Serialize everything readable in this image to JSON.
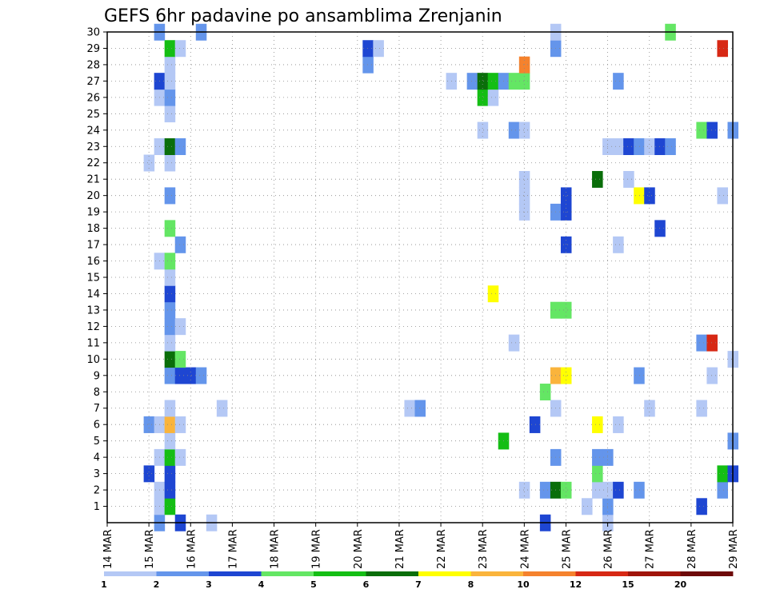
{
  "chart_data": {
    "type": "heatmap",
    "title": "GEFS 6hr padavine po ansamblima Zrenjanin",
    "xlabel": "",
    "ylabel": "",
    "x_tick_labels": [
      "14 MAR",
      "15 MAR",
      "16 MAR",
      "17 MAR",
      "18 MAR",
      "19 MAR",
      "20 MAR",
      "21 MAR",
      "22 MAR",
      "23 MAR",
      "24 MAR",
      "25 MAR",
      "26 MAR",
      "27 MAR",
      "28 MAR",
      "29 MAR"
    ],
    "x_range_days": [
      0,
      15
    ],
    "y_tick_labels": [
      "1",
      "2",
      "3",
      "4",
      "5",
      "6",
      "7",
      "8",
      "9",
      "10",
      "11",
      "12",
      "13",
      "14",
      "15",
      "16",
      "17",
      "18",
      "19",
      "20",
      "21",
      "22",
      "23",
      "24",
      "25",
      "26",
      "27",
      "28",
      "29",
      "30"
    ],
    "y_range": [
      0,
      30
    ],
    "time_step_hours": 6,
    "grid": true,
    "legend_placement": "bottom",
    "colorbar": {
      "labels": [
        "1",
        "2",
        "3",
        "4",
        "5",
        "6",
        "7",
        "8",
        "10",
        "12",
        "15",
        "20"
      ],
      "colors": [
        "#b4c8f5",
        "#6495eb",
        "#1e46d2",
        "#64e664",
        "#14be14",
        "#0a6e0a",
        "#ffff00",
        "#fab43c",
        "#f5822d",
        "#d72814",
        "#a0140a",
        "#6e0a0a"
      ]
    },
    "cells": [
      {
        "day": 1.25,
        "member": 0,
        "cls": 1
      },
      {
        "day": 1.75,
        "member": 0,
        "cls": 2
      },
      {
        "day": 2.5,
        "member": 0,
        "cls": 0
      },
      {
        "day": 10.5,
        "member": 0,
        "cls": 2
      },
      {
        "day": 12,
        "member": 0,
        "cls": 0
      },
      {
        "day": 1.25,
        "member": 1,
        "cls": 0
      },
      {
        "day": 1.5,
        "member": 1,
        "cls": 4
      },
      {
        "day": 11.5,
        "member": 1,
        "cls": 0
      },
      {
        "day": 12,
        "member": 1,
        "cls": 1
      },
      {
        "day": 14.25,
        "member": 1,
        "cls": 2
      },
      {
        "day": 1.25,
        "member": 2,
        "cls": 0
      },
      {
        "day": 1.5,
        "member": 2,
        "cls": 2
      },
      {
        "day": 10,
        "member": 2,
        "cls": 0
      },
      {
        "day": 10.5,
        "member": 2,
        "cls": 1
      },
      {
        "day": 10.75,
        "member": 2,
        "cls": 5
      },
      {
        "day": 11,
        "member": 2,
        "cls": 3
      },
      {
        "day": 11.75,
        "member": 2,
        "cls": 0
      },
      {
        "day": 12,
        "member": 2,
        "cls": 0
      },
      {
        "day": 12.25,
        "member": 2,
        "cls": 2
      },
      {
        "day": 12.75,
        "member": 2,
        "cls": 1
      },
      {
        "day": 14.75,
        "member": 2,
        "cls": 1
      },
      {
        "day": 1,
        "member": 3,
        "cls": 2
      },
      {
        "day": 1.5,
        "member": 3,
        "cls": 2
      },
      {
        "day": 11.75,
        "member": 3,
        "cls": 3
      },
      {
        "day": 14.75,
        "member": 3,
        "cls": 4
      },
      {
        "day": 15,
        "member": 3,
        "cls": 2
      },
      {
        "day": 1.25,
        "member": 4,
        "cls": 0
      },
      {
        "day": 1.5,
        "member": 4,
        "cls": 4
      },
      {
        "day": 1.75,
        "member": 4,
        "cls": 0
      },
      {
        "day": 10.75,
        "member": 4,
        "cls": 1
      },
      {
        "day": 11.75,
        "member": 4,
        "cls": 1
      },
      {
        "day": 12,
        "member": 4,
        "cls": 1
      },
      {
        "day": 1.5,
        "member": 5,
        "cls": 0
      },
      {
        "day": 9.5,
        "member": 5,
        "cls": 4
      },
      {
        "day": 15,
        "member": 5,
        "cls": 1
      },
      {
        "day": 1,
        "member": 6,
        "cls": 1
      },
      {
        "day": 1.25,
        "member": 6,
        "cls": 0
      },
      {
        "day": 1.5,
        "member": 6,
        "cls": 7
      },
      {
        "day": 1.75,
        "member": 6,
        "cls": 0
      },
      {
        "day": 10.25,
        "member": 6,
        "cls": 2
      },
      {
        "day": 11.75,
        "member": 6,
        "cls": 6
      },
      {
        "day": 12.25,
        "member": 6,
        "cls": 0
      },
      {
        "day": 1.5,
        "member": 7,
        "cls": 0
      },
      {
        "day": 2.75,
        "member": 7,
        "cls": 0
      },
      {
        "day": 7.25,
        "member": 7,
        "cls": 0
      },
      {
        "day": 7.5,
        "member": 7,
        "cls": 1
      },
      {
        "day": 10.75,
        "member": 7,
        "cls": 0
      },
      {
        "day": 13,
        "member": 7,
        "cls": 0
      },
      {
        "day": 14.25,
        "member": 7,
        "cls": 0
      },
      {
        "day": 10.5,
        "member": 8,
        "cls": 3
      },
      {
        "day": 1.5,
        "member": 9,
        "cls": 1
      },
      {
        "day": 1.75,
        "member": 9,
        "cls": 2
      },
      {
        "day": 2,
        "member": 9,
        "cls": 2
      },
      {
        "day": 2.25,
        "member": 9,
        "cls": 1
      },
      {
        "day": 10.75,
        "member": 9,
        "cls": 7
      },
      {
        "day": 11,
        "member": 9,
        "cls": 6
      },
      {
        "day": 12.75,
        "member": 9,
        "cls": 1
      },
      {
        "day": 14.5,
        "member": 9,
        "cls": 0
      },
      {
        "day": 1.5,
        "member": 10,
        "cls": 5
      },
      {
        "day": 1.75,
        "member": 10,
        "cls": 3
      },
      {
        "day": 15,
        "member": 10,
        "cls": 0
      },
      {
        "day": 1.5,
        "member": 11,
        "cls": 0
      },
      {
        "day": 9.75,
        "member": 11,
        "cls": 0
      },
      {
        "day": 14.25,
        "member": 11,
        "cls": 1
      },
      {
        "day": 14.5,
        "member": 11,
        "cls": 9
      },
      {
        "day": 1.5,
        "member": 12,
        "cls": 1
      },
      {
        "day": 1.75,
        "member": 12,
        "cls": 0
      },
      {
        "day": 1.5,
        "member": 13,
        "cls": 1
      },
      {
        "day": 10.75,
        "member": 13,
        "cls": 3
      },
      {
        "day": 11,
        "member": 13,
        "cls": 3
      },
      {
        "day": 1.5,
        "member": 14,
        "cls": 2
      },
      {
        "day": 9.25,
        "member": 14,
        "cls": 6
      },
      {
        "day": 1.5,
        "member": 15,
        "cls": 0
      },
      {
        "day": 1.25,
        "member": 16,
        "cls": 0
      },
      {
        "day": 1.5,
        "member": 16,
        "cls": 3
      },
      {
        "day": 1.75,
        "member": 17,
        "cls": 1
      },
      {
        "day": 11,
        "member": 17,
        "cls": 2
      },
      {
        "day": 12.25,
        "member": 17,
        "cls": 0
      },
      {
        "day": 13.25,
        "member": 18,
        "cls": 2
      },
      {
        "day": 1.5,
        "member": 18,
        "cls": 3
      },
      {
        "day": 10,
        "member": 19,
        "cls": 0
      },
      {
        "day": 10.75,
        "member": 19,
        "cls": 1
      },
      {
        "day": 11,
        "member": 19,
        "cls": 2
      },
      {
        "day": 1.5,
        "member": 20,
        "cls": 1
      },
      {
        "day": 10,
        "member": 20,
        "cls": 0
      },
      {
        "day": 11,
        "member": 20,
        "cls": 2
      },
      {
        "day": 12.75,
        "member": 20,
        "cls": 6
      },
      {
        "day": 13,
        "member": 20,
        "cls": 2
      },
      {
        "day": 14.75,
        "member": 20,
        "cls": 0
      },
      {
        "day": 10,
        "member": 21,
        "cls": 0
      },
      {
        "day": 11.75,
        "member": 21,
        "cls": 5
      },
      {
        "day": 12.5,
        "member": 21,
        "cls": 0
      },
      {
        "day": 1,
        "member": 22,
        "cls": 0
      },
      {
        "day": 1.5,
        "member": 22,
        "cls": 0
      },
      {
        "day": 1.25,
        "member": 23,
        "cls": 0
      },
      {
        "day": 1.5,
        "member": 23,
        "cls": 5
      },
      {
        "day": 1.75,
        "member": 23,
        "cls": 1
      },
      {
        "day": 12,
        "member": 23,
        "cls": 0
      },
      {
        "day": 12.25,
        "member": 23,
        "cls": 0
      },
      {
        "day": 12.5,
        "member": 23,
        "cls": 2
      },
      {
        "day": 12.75,
        "member": 23,
        "cls": 1
      },
      {
        "day": 13,
        "member": 23,
        "cls": 0
      },
      {
        "day": 13.25,
        "member": 23,
        "cls": 2
      },
      {
        "day": 13.5,
        "member": 23,
        "cls": 1
      },
      {
        "day": 9,
        "member": 24,
        "cls": 0
      },
      {
        "day": 9.75,
        "member": 24,
        "cls": 1
      },
      {
        "day": 10,
        "member": 24,
        "cls": 0
      },
      {
        "day": 14.25,
        "member": 24,
        "cls": 3
      },
      {
        "day": 14.5,
        "member": 24,
        "cls": 2
      },
      {
        "day": 15,
        "member": 24,
        "cls": 1
      },
      {
        "day": 1.5,
        "member": 25,
        "cls": 0
      },
      {
        "day": 1.25,
        "member": 26,
        "cls": 0
      },
      {
        "day": 1.5,
        "member": 26,
        "cls": 1
      },
      {
        "day": 9,
        "member": 26,
        "cls": 4
      },
      {
        "day": 9.25,
        "member": 26,
        "cls": 0
      },
      {
        "day": 1.25,
        "member": 27,
        "cls": 2
      },
      {
        "day": 1.5,
        "member": 27,
        "cls": 0
      },
      {
        "day": 8.25,
        "member": 27,
        "cls": 0
      },
      {
        "day": 8.75,
        "member": 27,
        "cls": 1
      },
      {
        "day": 9,
        "member": 27,
        "cls": 5
      },
      {
        "day": 9.25,
        "member": 27,
        "cls": 4
      },
      {
        "day": 9.5,
        "member": 27,
        "cls": 1
      },
      {
        "day": 9.75,
        "member": 27,
        "cls": 3
      },
      {
        "day": 10,
        "member": 27,
        "cls": 3
      },
      {
        "day": 12.25,
        "member": 27,
        "cls": 1
      },
      {
        "day": 1.5,
        "member": 28,
        "cls": 0
      },
      {
        "day": 6.25,
        "member": 28,
        "cls": 1
      },
      {
        "day": 10,
        "member": 28,
        "cls": 8
      },
      {
        "day": 1.5,
        "member": 29,
        "cls": 4
      },
      {
        "day": 1.75,
        "member": 29,
        "cls": 0
      },
      {
        "day": 6.25,
        "member": 29,
        "cls": 2
      },
      {
        "day": 6.5,
        "member": 29,
        "cls": 0
      },
      {
        "day": 10.75,
        "member": 29,
        "cls": 1
      },
      {
        "day": 14.75,
        "member": 29,
        "cls": 9
      },
      {
        "day": 1.25,
        "member": 30,
        "cls": 1
      },
      {
        "day": 2.25,
        "member": 30,
        "cls": 1
      },
      {
        "day": 10.75,
        "member": 30,
        "cls": 0
      },
      {
        "day": 13.5,
        "member": 30,
        "cls": 3
      }
    ]
  }
}
